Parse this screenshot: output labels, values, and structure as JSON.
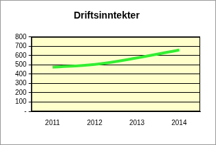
{
  "chart_data": {
    "type": "line",
    "title": "Driftsinntekter",
    "categories": [
      "2011",
      "2012",
      "2013",
      "2014"
    ],
    "values": [
      475,
      505,
      575,
      660
    ],
    "color": "#33ee33",
    "ylim": [
      0,
      800
    ],
    "yticks": [
      {
        "value": 0,
        "label": "-"
      },
      100,
      200,
      300,
      400,
      500,
      600,
      700,
      800
    ],
    "grid": true
  }
}
